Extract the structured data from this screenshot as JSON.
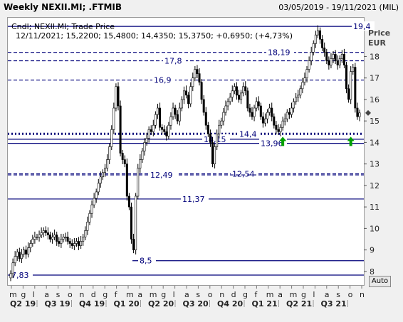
{
  "window": {
    "title": "Weekly NEXII.MI; .FTMIB",
    "date_range": "03/05/2019 - 19/11/2021 (MIL)"
  },
  "legend": {
    "series": "Cndl; NEXII.MI; Trade Price",
    "quote": "12/11/2021; 15,2200; 15,4800; 14,4350; 15,3750; +0,6950; (+4,73%)"
  },
  "axis_label": [
    "Price",
    "EUR"
  ],
  "auto_button": "Auto",
  "colors": {
    "line": "#00007a",
    "up_arrow": "#00a000",
    "candle": "#000000",
    "grid": "#c8c8c8"
  },
  "chart_data": {
    "type": "candlestick",
    "ylim": [
      7.4,
      19.8
    ],
    "y_ticks": [
      8,
      9,
      10,
      11,
      12,
      13,
      14,
      15,
      16,
      17,
      18
    ],
    "month_labels": [
      "m",
      "g",
      "l",
      "a",
      "s",
      "o",
      "n",
      "d",
      "g",
      "f",
      "m",
      "a",
      "m",
      "g",
      "l",
      "a",
      "s",
      "o",
      "n",
      "d",
      "g",
      "f",
      "m",
      "a",
      "m",
      "g",
      "l",
      "a",
      "s",
      "o",
      "n"
    ],
    "quarter_labels": [
      "Q2 19",
      "Q3 19",
      "Q4 19",
      "Q1 20",
      "Q2 20",
      "Q3 20",
      "Q4 20",
      "Q1 21",
      "Q2 21",
      "Q3 21"
    ],
    "horizontal_lines": [
      {
        "value": 19.4,
        "label": "19,4",
        "style": "solid",
        "start": 0.0,
        "label_pos": 0.97
      },
      {
        "value": 18.19,
        "label": "18,19",
        "style": "dashed",
        "start": 0.0,
        "label_pos": 0.73
      },
      {
        "value": 17.8,
        "label": "17,8",
        "style": "dashed",
        "start": 0.0,
        "label_pos": 0.44
      },
      {
        "value": 16.9,
        "label": "16,9",
        "style": "dashed",
        "start": 0.0,
        "label_pos": 0.41
      },
      {
        "value": 14.4,
        "label": "14,4",
        "style": "dotted",
        "start": 0.0,
        "label_pos": 0.65
      },
      {
        "value": 14.15,
        "label": "14,15",
        "style": "solid",
        "start": 0.0,
        "label_pos": 0.55
      },
      {
        "value": 13.96,
        "label": "13,96",
        "style": "solid",
        "start": 0.0,
        "label_pos": 0.71
      },
      {
        "value": 12.54,
        "label": "12,54",
        "style": "dashed",
        "start": 0.0,
        "label_pos": 0.63
      },
      {
        "value": 12.49,
        "label": "12,49",
        "style": "dashed",
        "start": 0.0,
        "label_pos": 0.4
      },
      {
        "value": 11.37,
        "label": "11,37",
        "style": "solid",
        "start": 0.0,
        "label_pos": 0.49
      },
      {
        "value": 8.5,
        "label": "8,5",
        "style": "solid",
        "start": 0.35,
        "label_pos": 0.37
      },
      {
        "value": 7.83,
        "label": "7,83",
        "style": "solid",
        "start": 0.0,
        "label_pos": 0.01
      }
    ],
    "last_price": 15.375,
    "up_arrows": [
      {
        "week": 124,
        "value": 14.0
      },
      {
        "week": 155,
        "value": 14.0
      }
    ],
    "closes": [
      7.9,
      8.4,
      8.7,
      8.9,
      8.6,
      8.8,
      9.0,
      8.8,
      9.1,
      9.3,
      9.5,
      9.6,
      9.6,
      9.7,
      9.8,
      9.9,
      9.8,
      9.7,
      9.5,
      9.6,
      9.7,
      9.4,
      9.3,
      9.5,
      9.6,
      9.6,
      9.4,
      9.3,
      9.2,
      9.3,
      9.4,
      9.2,
      9.4,
      9.6,
      9.9,
      10.3,
      10.7,
      11.1,
      11.4,
      11.7,
      12.1,
      12.4,
      12.6,
      12.8,
      13.2,
      13.8,
      14.6,
      15.6,
      16.6,
      15.7,
      13.5,
      13.2,
      13.0,
      11.5,
      11.0,
      9.5,
      9.0,
      11.5,
      12.8,
      13.2,
      13.6,
      14.0,
      14.2,
      14.6,
      14.5,
      14.8,
      15.3,
      15.6,
      14.7,
      14.6,
      14.5,
      14.3,
      14.8,
      15.2,
      15.6,
      15.3,
      15.0,
      15.6,
      16.0,
      16.4,
      16.2,
      15.8,
      16.6,
      17.0,
      17.4,
      17.2,
      16.8,
      16.0,
      15.4,
      14.8,
      14.4,
      14.0,
      13.0,
      13.8,
      14.4,
      14.8,
      15.0,
      15.4,
      15.7,
      15.9,
      16.1,
      16.4,
      16.6,
      16.2,
      16.0,
      16.3,
      16.6,
      16.4,
      15.6,
      15.4,
      15.2,
      15.6,
      15.9,
      15.7,
      15.2,
      14.9,
      15.1,
      15.4,
      15.6,
      15.2,
      14.8,
      14.6,
      14.5,
      14.7,
      15.0,
      15.1,
      15.4,
      15.3,
      15.6,
      15.9,
      16.1,
      16.2,
      16.5,
      16.8,
      17.0,
      17.4,
      17.8,
      18.2,
      18.6,
      19.0,
      19.2,
      18.8,
      18.4,
      18.2,
      17.8,
      17.6,
      17.9,
      18.1,
      17.8,
      17.6,
      17.9,
      18.1,
      17.6,
      16.5,
      16.0,
      17.3,
      17.5,
      15.6,
      15.2,
      15.375
    ]
  }
}
